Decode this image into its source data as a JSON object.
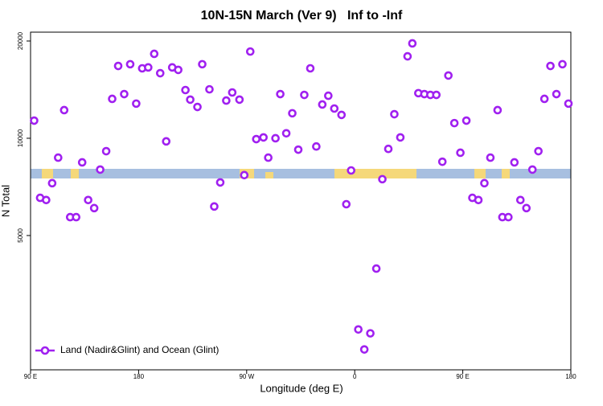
{
  "chart_data": {
    "type": "scatter",
    "title": "10N-15N March (Ver 9)   Inf to -Inf",
    "xlabel": "Longitude (deg E)",
    "ylabel": "N Total",
    "xlim": [
      90,
      540
    ],
    "xticks": [
      {
        "value": 90,
        "label": "90 E"
      },
      180,
      {
        "value": 270,
        "label": "90 W"
      },
      {
        "value": 360,
        "label": "0"
      },
      {
        "value": 450,
        "label": "90 E"
      },
      {
        "value": 540,
        "label": "180"
      }
    ],
    "ylim": [
      1920,
      21300
    ],
    "yticks": [
      5000,
      10000,
      20000
    ],
    "yscale": "log",
    "legend_position": "bottom-left",
    "x": [
      93,
      98,
      103,
      108,
      113,
      118,
      123,
      128,
      133,
      138,
      143,
      148,
      153,
      158,
      163,
      168,
      173,
      178,
      183,
      188,
      193,
      198,
      203,
      208,
      213,
      219,
      223,
      229,
      233,
      239,
      243,
      248,
      253,
      258,
      264,
      268,
      273,
      278,
      284,
      288,
      294,
      298,
      303,
      308,
      313,
      318,
      323,
      328,
      333,
      338,
      343,
      349,
      353,
      357,
      363,
      368,
      373,
      378,
      383,
      388,
      393,
      398,
      404,
      408,
      413,
      418,
      423,
      428,
      433,
      438,
      443,
      448,
      453,
      458,
      463,
      468,
      473,
      479,
      483,
      488,
      493,
      498,
      503,
      508,
      513,
      518,
      523,
      528,
      533,
      538
    ],
    "series": [
      {
        "name": "Land (Nadir&Glint) and Ocean (Glint)",
        "color": "#a020f0",
        "values": [
          11340,
          6540,
          6440,
          7260,
          8710,
          12220,
          5700,
          5700,
          8420,
          6440,
          6080,
          8000,
          9120,
          13240,
          16740,
          13700,
          16950,
          12800,
          16460,
          16570,
          18250,
          15900,
          9780,
          16570,
          16280,
          14100,
          13170,
          12500,
          16950,
          14170,
          6150,
          7300,
          13080,
          13860,
          13170,
          7690,
          18550,
          9940,
          10060,
          8710,
          10000,
          13700,
          10360,
          11950,
          9220,
          13620,
          16460,
          9430,
          12720,
          13540,
          12360,
          11810,
          6250,
          7950,
          2560,
          2220,
          2490,
          3950,
          7470,
          9270,
          11870,
          10060,
          17930,
          19660,
          13790,
          13700,
          13620,
          13620,
          8460,
          15640,
          11140,
          9020,
          11340,
          6540,
          6440,
          7260,
          8710,
          12220,
          5700,
          5700,
          8420,
          6440,
          6080,
          8000,
          9120,
          13240,
          16740,
          13700,
          16950,
          12800
        ]
      }
    ]
  }
}
